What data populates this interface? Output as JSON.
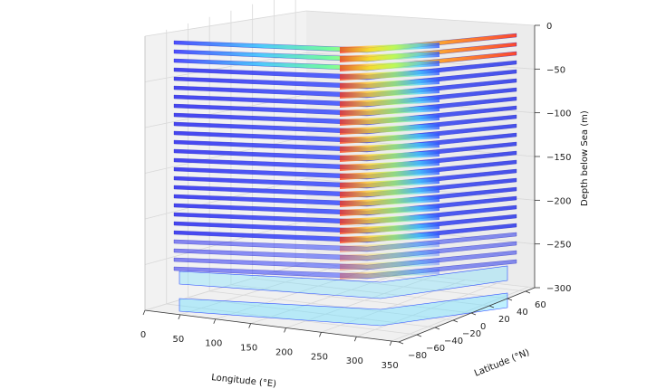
{
  "chart_data": {
    "type": "3d-contour-stack",
    "title": "",
    "xlabel": "Longitude (°E)",
    "ylabel": "Latitude (°N)",
    "zlabel": "Depth below Sea (m)",
    "x_ticks": [
      0,
      50,
      100,
      150,
      200,
      250,
      300,
      350
    ],
    "y_ticks": [
      -80,
      -60,
      -40,
      -20,
      0,
      20,
      40,
      60
    ],
    "z_ticks": [
      0,
      -50,
      -100,
      -150,
      -200,
      -250,
      -300
    ],
    "xlim": [
      0,
      360
    ],
    "ylim": [
      -80,
      70
    ],
    "zlim": [
      -300,
      0
    ],
    "colormap": "jet",
    "grid": true,
    "legend": "none",
    "colors": {
      "pane": "#f2f2f2",
      "pane_side": "#e9e9e9",
      "grid": "#d8d8d8"
    }
  }
}
